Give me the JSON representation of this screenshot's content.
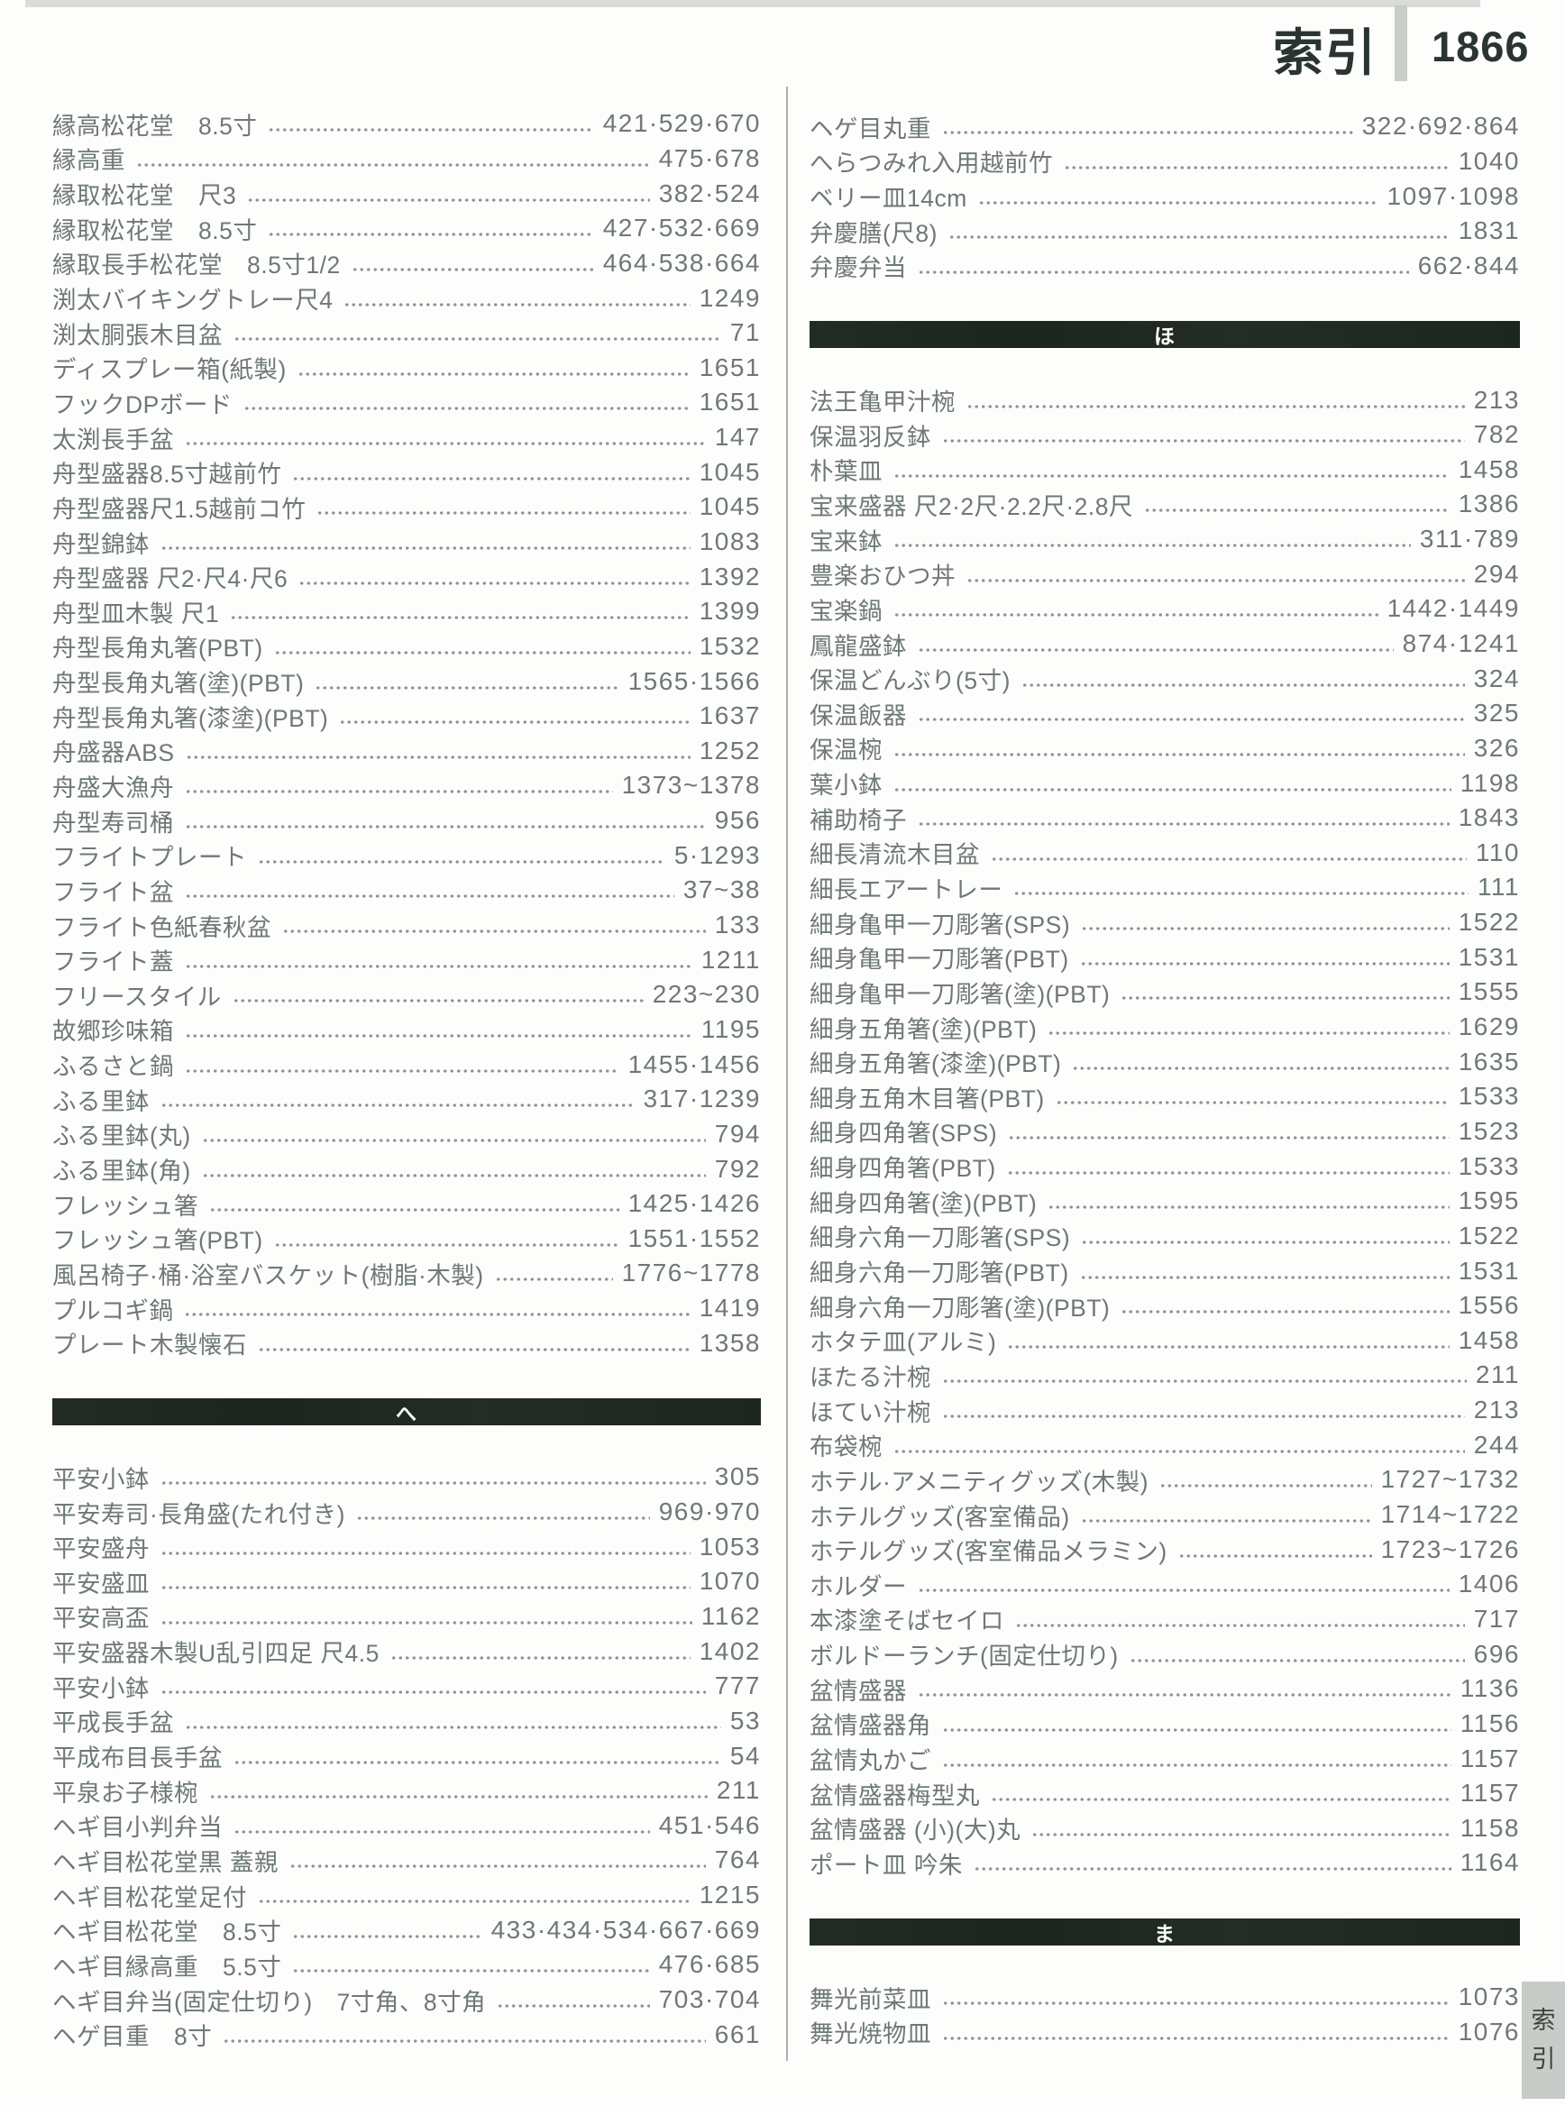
{
  "page": {
    "header": {
      "title": "索引",
      "page_number": "1866"
    },
    "side_tab": {
      "char1": "索",
      "char2": "引"
    }
  },
  "colors": {
    "section_bar": "#1f2a22",
    "entry_text": "#6e7975",
    "header_text": "#2b352f",
    "side_tab_bg": "#c7ccc8",
    "column_divider": "#abb1ae",
    "top_strip": "#d9dcd9"
  },
  "columns": {
    "left": {
      "sections": [
        {
          "header": null,
          "entries": [
            {
              "t": "縁高松花堂　8.5寸",
              "p": "421·529·670"
            },
            {
              "t": "縁高重",
              "p": "475·678"
            },
            {
              "t": "縁取松花堂　尺3",
              "p": "382·524"
            },
            {
              "t": "縁取松花堂　8.5寸",
              "p": "427·532·669"
            },
            {
              "t": "縁取長手松花堂　8.5寸1/2",
              "p": "464·538·664"
            },
            {
              "t": "渕太バイキングトレー尺4",
              "p": "1249"
            },
            {
              "t": "渕太胴張木目盆",
              "p": "71"
            },
            {
              "t": "ディスプレー箱(紙製)",
              "p": "1651"
            },
            {
              "t": "フックDPボード",
              "p": "1651"
            },
            {
              "t": "太渕長手盆",
              "p": "147"
            },
            {
              "t": "舟型盛器8.5寸越前竹",
              "p": "1045"
            },
            {
              "t": "舟型盛器尺1.5越前コ竹",
              "p": "1045"
            },
            {
              "t": "舟型錦鉢",
              "p": "1083"
            },
            {
              "t": "舟型盛器 尺2·尺4·尺6",
              "p": "1392"
            },
            {
              "t": "舟型皿木製 尺1",
              "p": "1399"
            },
            {
              "t": "舟型長角丸箸(PBT)",
              "p": "1532"
            },
            {
              "t": "舟型長角丸箸(塗)(PBT)",
              "p": "1565·1566"
            },
            {
              "t": "舟型長角丸箸(漆塗)(PBT)",
              "p": "1637"
            },
            {
              "t": "舟盛器ABS",
              "p": "1252"
            },
            {
              "t": "舟盛大漁舟",
              "p": "1373~1378"
            },
            {
              "t": "舟型寿司桶",
              "p": "956"
            },
            {
              "t": "フライトプレート",
              "p": "5·1293"
            },
            {
              "t": "フライト盆",
              "p": "37~38"
            },
            {
              "t": "フライト色紙春秋盆",
              "p": "133"
            },
            {
              "t": "フライト蓋",
              "p": "1211"
            },
            {
              "t": "フリースタイル",
              "p": "223~230"
            },
            {
              "t": "故郷珍味箱",
              "p": "1195"
            },
            {
              "t": "ふるさと鍋",
              "p": "1455·1456"
            },
            {
              "t": "ふる里鉢",
              "p": "317·1239"
            },
            {
              "t": "ふる里鉢(丸)",
              "p": "794"
            },
            {
              "t": "ふる里鉢(角)",
              "p": "792"
            },
            {
              "t": "フレッシュ箸",
              "p": "1425·1426"
            },
            {
              "t": "フレッシュ箸(PBT)",
              "p": "1551·1552"
            },
            {
              "t": "風呂椅子·桶·浴室バスケット(樹脂·木製)",
              "p": "1776~1778"
            },
            {
              "t": "プルコギ鍋",
              "p": "1419"
            },
            {
              "t": "プレート木製懐石",
              "p": "1358"
            }
          ]
        },
        {
          "header": "へ",
          "entries": [
            {
              "t": "平安小鉢",
              "p": "305"
            },
            {
              "t": "平安寿司·長角盛(たれ付き)",
              "p": "969·970"
            },
            {
              "t": "平安盛舟",
              "p": "1053"
            },
            {
              "t": "平安盛皿",
              "p": "1070"
            },
            {
              "t": "平安高盃",
              "p": "1162"
            },
            {
              "t": "平安盛器木製U乱引四足 尺4.5",
              "p": "1402"
            },
            {
              "t": "平安小鉢",
              "p": "777"
            },
            {
              "t": "平成長手盆",
              "p": "53"
            },
            {
              "t": "平成布目長手盆",
              "p": "54"
            },
            {
              "t": "平泉お子様椀",
              "p": "211"
            },
            {
              "t": "ヘギ目小判弁当",
              "p": "451·546"
            },
            {
              "t": "ヘギ目松花堂黒 蓋親",
              "p": "764"
            },
            {
              "t": "ヘギ目松花堂足付",
              "p": "1215"
            },
            {
              "t": "ヘギ目松花堂　8.5寸",
              "p": "433·434·534·667·669"
            },
            {
              "t": "ヘギ目縁高重　5.5寸",
              "p": "476·685"
            },
            {
              "t": "ヘギ目弁当(固定仕切り)　7寸角、8寸角",
              "p": "703·704"
            },
            {
              "t": "ヘゲ目重　8寸",
              "p": "661"
            }
          ]
        }
      ]
    },
    "right": {
      "sections": [
        {
          "header": null,
          "entries": [
            {
              "t": "ヘゲ目丸重",
              "p": "322·692·864"
            },
            {
              "t": "へらつみれ入用越前竹",
              "p": "1040"
            },
            {
              "t": "ベリー皿14cm",
              "p": "1097·1098"
            },
            {
              "t": "弁慶膳(尺8)",
              "p": "1831"
            },
            {
              "t": "弁慶弁当",
              "p": "662·844"
            }
          ]
        },
        {
          "header": "ほ",
          "entries": [
            {
              "t": "法王亀甲汁椀",
              "p": "213"
            },
            {
              "t": "保温羽反鉢",
              "p": "782"
            },
            {
              "t": "朴葉皿",
              "p": "1458"
            },
            {
              "t": "宝来盛器 尺2·2尺·2.2尺·2.8尺",
              "p": "1386"
            },
            {
              "t": "宝来鉢",
              "p": "311·789"
            },
            {
              "t": "豊楽おひつ丼",
              "p": "294"
            },
            {
              "t": "宝楽鍋",
              "p": "1442·1449"
            },
            {
              "t": "鳳龍盛鉢",
              "p": "874·1241"
            },
            {
              "t": "保温どんぶり(5寸)",
              "p": "324"
            },
            {
              "t": "保温飯器",
              "p": "325"
            },
            {
              "t": "保温椀",
              "p": "326"
            },
            {
              "t": "葉小鉢",
              "p": "1198"
            },
            {
              "t": "補助椅子",
              "p": "1843"
            },
            {
              "t": "細長清流木目盆",
              "p": "110"
            },
            {
              "t": "細長エアートレー",
              "p": "111"
            },
            {
              "t": "細身亀甲一刀彫箸(SPS)",
              "p": "1522"
            },
            {
              "t": "細身亀甲一刀彫箸(PBT)",
              "p": "1531"
            },
            {
              "t": "細身亀甲一刀彫箸(塗)(PBT)",
              "p": "1555"
            },
            {
              "t": "細身五角箸(塗)(PBT)",
              "p": "1629"
            },
            {
              "t": "細身五角箸(漆塗)(PBT)",
              "p": "1635"
            },
            {
              "t": "細身五角木目箸(PBT)",
              "p": "1533"
            },
            {
              "t": "細身四角箸(SPS)",
              "p": "1523"
            },
            {
              "t": "細身四角箸(PBT)",
              "p": "1533"
            },
            {
              "t": "細身四角箸(塗)(PBT)",
              "p": "1595"
            },
            {
              "t": "細身六角一刀彫箸(SPS)",
              "p": "1522"
            },
            {
              "t": "細身六角一刀彫箸(PBT)",
              "p": "1531"
            },
            {
              "t": "細身六角一刀彫箸(塗)(PBT)",
              "p": "1556"
            },
            {
              "t": "ホタテ皿(アルミ)",
              "p": "1458"
            },
            {
              "t": "ほたる汁椀",
              "p": "211"
            },
            {
              "t": "ほてい汁椀",
              "p": "213"
            },
            {
              "t": "布袋椀",
              "p": "244"
            },
            {
              "t": "ホテル·アメニティグッズ(木製)",
              "p": "1727~1732"
            },
            {
              "t": "ホテルグッズ(客室備品)",
              "p": "1714~1722"
            },
            {
              "t": "ホテルグッズ(客室備品メラミン)",
              "p": "1723~1726"
            },
            {
              "t": "ホルダー",
              "p": "1406"
            },
            {
              "t": "本漆塗そばセイロ",
              "p": "717"
            },
            {
              "t": "ボルドーランチ(固定仕切り)",
              "p": "696"
            },
            {
              "t": "盆情盛器",
              "p": "1136"
            },
            {
              "t": "盆情盛器角",
              "p": "1156"
            },
            {
              "t": "盆情丸かご",
              "p": "1157"
            },
            {
              "t": "盆情盛器梅型丸",
              "p": "1157"
            },
            {
              "t": "盆情盛器 (小)(大)丸",
              "p": "1158"
            },
            {
              "t": "ポート皿 吟朱",
              "p": "1164"
            }
          ]
        },
        {
          "header": "ま",
          "entries": [
            {
              "t": "舞光前菜皿",
              "p": "1073"
            },
            {
              "t": "舞光焼物皿",
              "p": "1076"
            }
          ]
        }
      ]
    }
  }
}
